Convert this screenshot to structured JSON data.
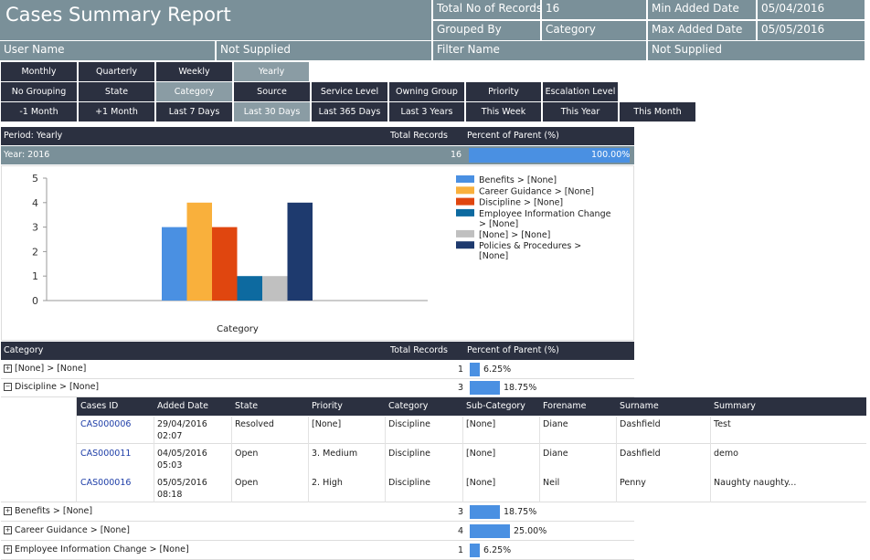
{
  "report": {
    "title": "Cases Summary Report",
    "total_label": "Total No of Records",
    "total_value": "16",
    "min_label": "Min Added Date",
    "min_value": "05/04/2016",
    "grouped_label": "Grouped By",
    "grouped_value": "Category",
    "max_label": "Max Added Date",
    "max_value": "05/05/2016",
    "user_label": "User Name",
    "user_value": "Not Supplied",
    "filter_label": "Filter Name",
    "filter_value": "Not Supplied"
  },
  "period_buttons": [
    "Monthly",
    "Quarterly",
    "Weekly",
    "Yearly"
  ],
  "group_buttons": [
    "No Grouping",
    "State",
    "Category",
    "Source",
    "Service Level",
    "Owning Group",
    "Priority",
    "Escalation Level"
  ],
  "range_buttons": [
    "-1 Month",
    "+1 Month",
    "Last 7 Days",
    "Last 30 Days",
    "Last 365 Days",
    "Last 3 Years",
    "This Week",
    "This Year",
    "This Month"
  ],
  "period_table": {
    "col1": "Period: Yearly",
    "col2": "Total Records",
    "col3": "Percent  of Parent (%)",
    "row_label": "Year: 2016",
    "row_total": "16",
    "row_percent": "100.00%",
    "row_fraction": 1.0
  },
  "chart_data": {
    "type": "bar",
    "xlabel": "Category",
    "ylim": [
      0,
      5
    ],
    "yticks": [
      "0",
      "1",
      "2",
      "3",
      "4",
      "5"
    ],
    "series": [
      {
        "name": "Benefits > [None]",
        "value": 3,
        "color": "#4a90e2"
      },
      {
        "name": "Career Guidance > [None]",
        "value": 4,
        "color": "#f9b03c"
      },
      {
        "name": "Discipline > [None]",
        "value": 3,
        "color": "#e0460f"
      },
      {
        "name": "Employee Information Change > [None]",
        "value": 1,
        "color": "#0d6aa0"
      },
      {
        "name": "[None] > [None]",
        "value": 1,
        "color": "#c0c0c0"
      },
      {
        "name": "Policies & Procedures > [None]",
        "value": 4,
        "color": "#1e3a6e"
      }
    ],
    "legend_position": "right",
    "grid": false
  },
  "category_table": {
    "col1": "Category",
    "col2": "Total Records",
    "col3": "Percent  of Parent (%)",
    "rows": [
      {
        "label": "[None] > [None]",
        "total": "1",
        "percent": "6.25%",
        "fraction": 0.0625,
        "expand": "+"
      },
      {
        "label": "Discipline > [None]",
        "total": "3",
        "percent": "18.75%",
        "fraction": 0.1875,
        "expand": "-"
      },
      {
        "label": "Benefits > [None]",
        "total": "3",
        "percent": "18.75%",
        "fraction": 0.1875,
        "expand": "+"
      },
      {
        "label": "Career Guidance > [None]",
        "total": "4",
        "percent": "25.00%",
        "fraction": 0.25,
        "expand": "+"
      },
      {
        "label": "Employee Information Change > [None]",
        "total": "1",
        "percent": "6.25%",
        "fraction": 0.0625,
        "expand": "+"
      }
    ]
  },
  "detail": {
    "headers": [
      "Cases ID",
      "Added Date",
      "State",
      "Priority",
      "Category",
      "Sub-Category",
      "Forename",
      "Surname",
      "Summary"
    ],
    "rows": [
      {
        "id": "CAS000006",
        "date1": "29/04/2016",
        "date2": "02:07",
        "state": "Resolved",
        "priority": "[None]",
        "category": "Discipline",
        "subcategory": "[None]",
        "forename": "Diane",
        "surname": "Dashfield",
        "summary": "Test"
      },
      {
        "id": "CAS000011",
        "date1": "04/05/2016",
        "date2": "05:03",
        "state": "Open",
        "priority": "3. Medium",
        "category": "Discipline",
        "subcategory": "[None]",
        "forename": "Diane",
        "surname": "Dashfield",
        "summary": "demo"
      },
      {
        "id": "CAS000016",
        "date1": "05/05/2016",
        "date2": "08:18",
        "state": "Open",
        "priority": "2. High",
        "category": "Discipline",
        "subcategory": "[None]",
        "forename": "Neil",
        "surname": "Penny",
        "summary": "Naughty naughty..."
      }
    ]
  }
}
